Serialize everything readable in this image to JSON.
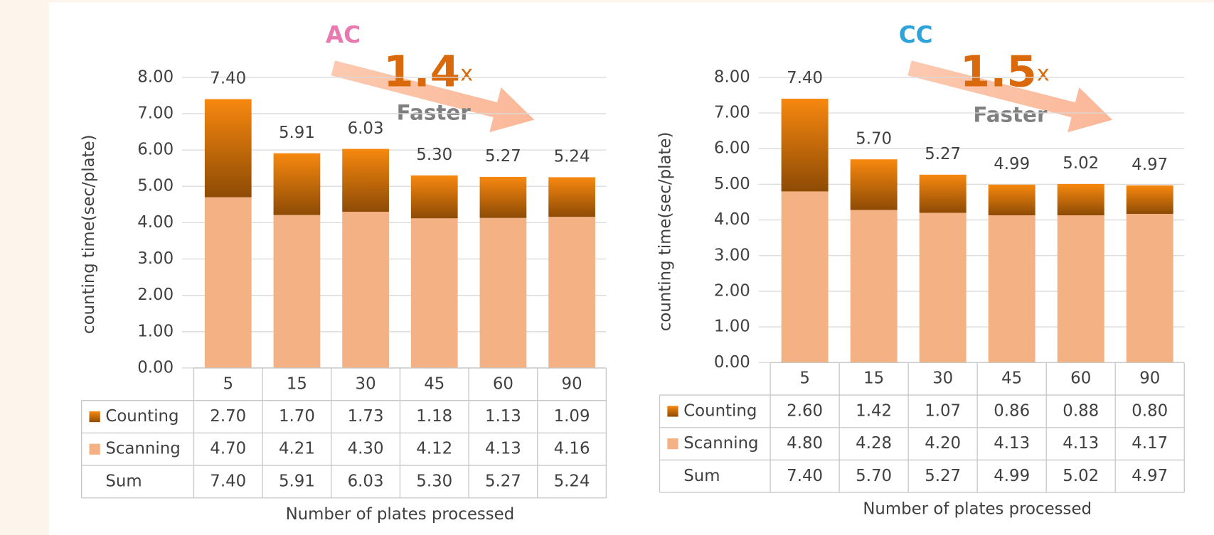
{
  "chart_data": [
    {
      "type": "bar",
      "stacked": true,
      "title": "AC",
      "title_color": "#e87ab0",
      "annotation": {
        "multiplier": "1.4",
        "unit": "x",
        "note": "Faster"
      },
      "x_label": "Number of plates processed",
      "y_label": "counting time(sec/plate)",
      "categories": [
        "5",
        "15",
        "30",
        "45",
        "60",
        "90"
      ],
      "series": [
        {
          "name": "Counting",
          "color": "#f08410",
          "values": [
            2.7,
            1.7,
            1.73,
            1.18,
            1.13,
            1.09
          ],
          "value_labels": [
            "2.70",
            "1.70",
            "1.73",
            "1.18",
            "1.13",
            "1.09"
          ]
        },
        {
          "name": "Scanning",
          "color": "#f4b183",
          "values": [
            4.7,
            4.21,
            4.3,
            4.12,
            4.13,
            4.16
          ],
          "value_labels": [
            "4.70",
            "4.21",
            "4.30",
            "4.12",
            "4.13",
            "4.16"
          ]
        }
      ],
      "sum": {
        "name": "Sum",
        "values": [
          7.4,
          5.91,
          6.03,
          5.3,
          5.27,
          5.24
        ],
        "value_labels": [
          "7.40",
          "5.91",
          "6.03",
          "5.30",
          "5.27",
          "5.24"
        ]
      },
      "ylim": [
        0,
        8
      ],
      "grid": true,
      "yticks": [
        {
          "value": 0,
          "label": "0.00"
        },
        {
          "value": 1,
          "label": "1.00"
        },
        {
          "value": 2,
          "label": "2.00"
        },
        {
          "value": 3,
          "label": "3.00"
        },
        {
          "value": 4,
          "label": "4.00"
        },
        {
          "value": 5,
          "label": "5.00"
        },
        {
          "value": 6,
          "label": "6.00"
        },
        {
          "value": 7,
          "label": "7.00"
        },
        {
          "value": 8,
          "label": "8.00"
        }
      ]
    },
    {
      "type": "bar",
      "stacked": true,
      "title": "CC",
      "title_color": "#2ea3da",
      "annotation": {
        "multiplier": "1.5",
        "unit": "x",
        "note": "Faster"
      },
      "x_label": "Number of plates processed",
      "y_label": "counting time(sec/plate)",
      "categories": [
        "5",
        "15",
        "30",
        "45",
        "60",
        "90"
      ],
      "series": [
        {
          "name": "Counting",
          "color": "#f08410",
          "values": [
            2.6,
            1.42,
            1.07,
            0.86,
            0.88,
            0.8
          ],
          "value_labels": [
            "2.60",
            "1.42",
            "1.07",
            "0.86",
            "0.88",
            "0.80"
          ]
        },
        {
          "name": "Scanning",
          "color": "#f4b183",
          "values": [
            4.8,
            4.28,
            4.2,
            4.13,
            4.13,
            4.17
          ],
          "value_labels": [
            "4.80",
            "4.28",
            "4.20",
            "4.13",
            "4.13",
            "4.17"
          ]
        }
      ],
      "sum": {
        "name": "Sum",
        "values": [
          7.4,
          5.7,
          5.27,
          4.99,
          5.02,
          4.97
        ],
        "value_labels": [
          "7.40",
          "5.70",
          "5.27",
          "4.99",
          "5.02",
          "4.97"
        ]
      },
      "ylim": [
        0,
        8
      ],
      "grid": true,
      "yticks": [
        {
          "value": 0,
          "label": "0.00"
        },
        {
          "value": 1,
          "label": "1.00"
        },
        {
          "value": 2,
          "label": "2.00"
        },
        {
          "value": 3,
          "label": "3.00"
        },
        {
          "value": 4,
          "label": "4.00"
        },
        {
          "value": 5,
          "label": "5.00"
        },
        {
          "value": 6,
          "label": "6.00"
        },
        {
          "value": 7,
          "label": "7.00"
        },
        {
          "value": 8,
          "label": "8.00"
        }
      ]
    }
  ]
}
